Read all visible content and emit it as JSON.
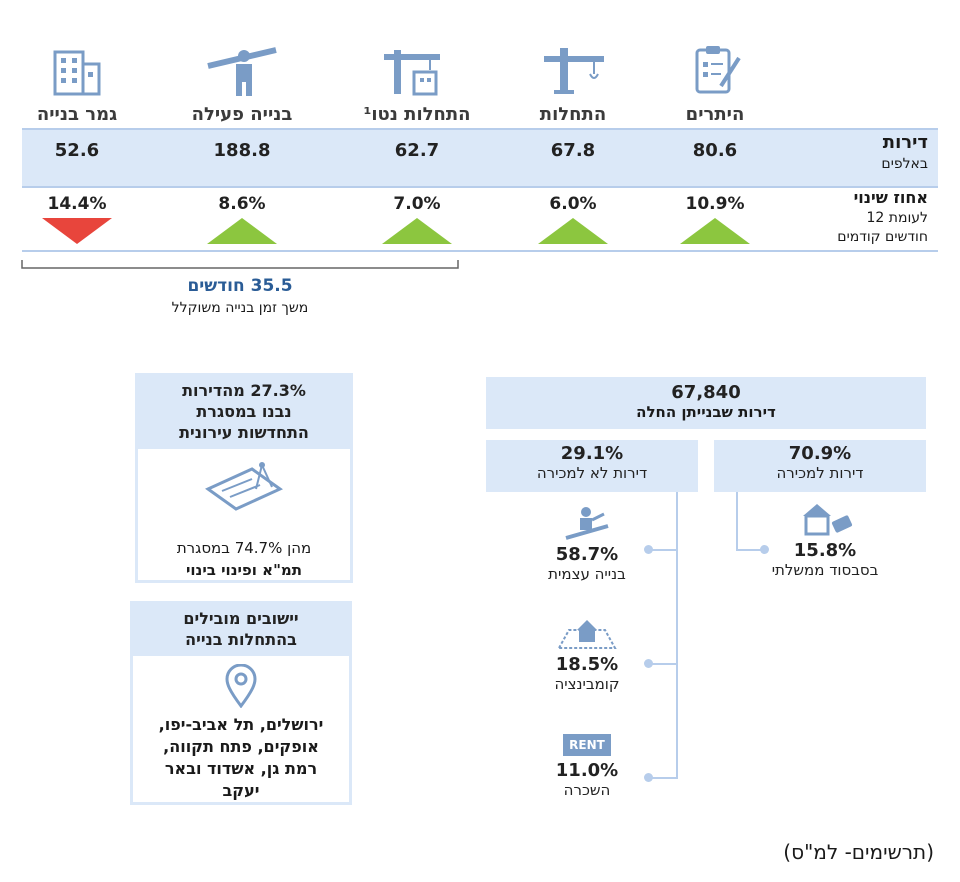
{
  "columns": [
    {
      "title": "היתרים",
      "value": "80.6",
      "change": "10.9%",
      "direction": "up",
      "icon": "clipboard-icon"
    },
    {
      "title": "התחלות",
      "value": "67.8",
      "change": "6.0%",
      "direction": "up",
      "icon": "crane-icon"
    },
    {
      "title": "התחלות נטו¹",
      "value": "62.7",
      "change": "7.0%",
      "direction": "up",
      "icon": "crane-building-icon"
    },
    {
      "title": "בנייה פעילה",
      "value": "188.8",
      "change": "8.6%",
      "direction": "up",
      "icon": "construction-worker-icon"
    },
    {
      "title": "גמר בנייה",
      "value": "52.6",
      "change": "14.4%",
      "direction": "down",
      "icon": "building-icon"
    }
  ],
  "rows": {
    "apartments_label": "דירות",
    "apartments_unit": "באלפים",
    "change_label": "אחוז שינוי",
    "change_sub1": "לעומת 12",
    "change_sub2": "חודשים קודמים"
  },
  "duration": {
    "value": "35.5 חודשים",
    "label": "משך זמן בנייה משוקלל"
  },
  "urban_renewal": {
    "title_line1": "27.3% מהדירות",
    "title_line2": "נבנו במסגרת",
    "title_line3": "התחדשות עירונית",
    "icon": "blueprint-icon",
    "note_line1": "מהן 74.7% במסגרת",
    "note_line2": "תמ\"א ופינוי בינוי"
  },
  "leading": {
    "title_line1": "יישובים מובילים",
    "title_line2": "בהתחלות בנייה",
    "icon": "location-pin-icon",
    "line1": "ירושלים, תל אביב-יפו,",
    "line2": "אופקים, פתח תקווה,",
    "line3": "רמת גן, אשדוד ובאר",
    "line4": "יעקב"
  },
  "tree": {
    "total": "67,840",
    "total_label": "דירות שבנייתן החלה",
    "for_sale_pct": "70.9%",
    "for_sale_label": "דירות למכירה",
    "not_for_sale_pct": "29.1%",
    "not_for_sale_label": "דירות לא למכירה",
    "subsidy_pct": "15.8%",
    "subsidy_label": "בסבסוד ממשלתי",
    "self_build_pct": "58.7%",
    "self_build_label": "בנייה עצמית",
    "combination_pct": "18.5%",
    "combination_label": "קומבינציה",
    "rent_pct": "11.0%",
    "rent_label": "השכרה",
    "rent_sign": "RENT"
  },
  "footer": "(תרשימים- למ\"ס)",
  "colors": {
    "band": "#dbe8f8",
    "accent_line": "#b7cdeb",
    "up": "#8cc63f",
    "down": "#e8453c",
    "icon": "#7a9cc6"
  }
}
